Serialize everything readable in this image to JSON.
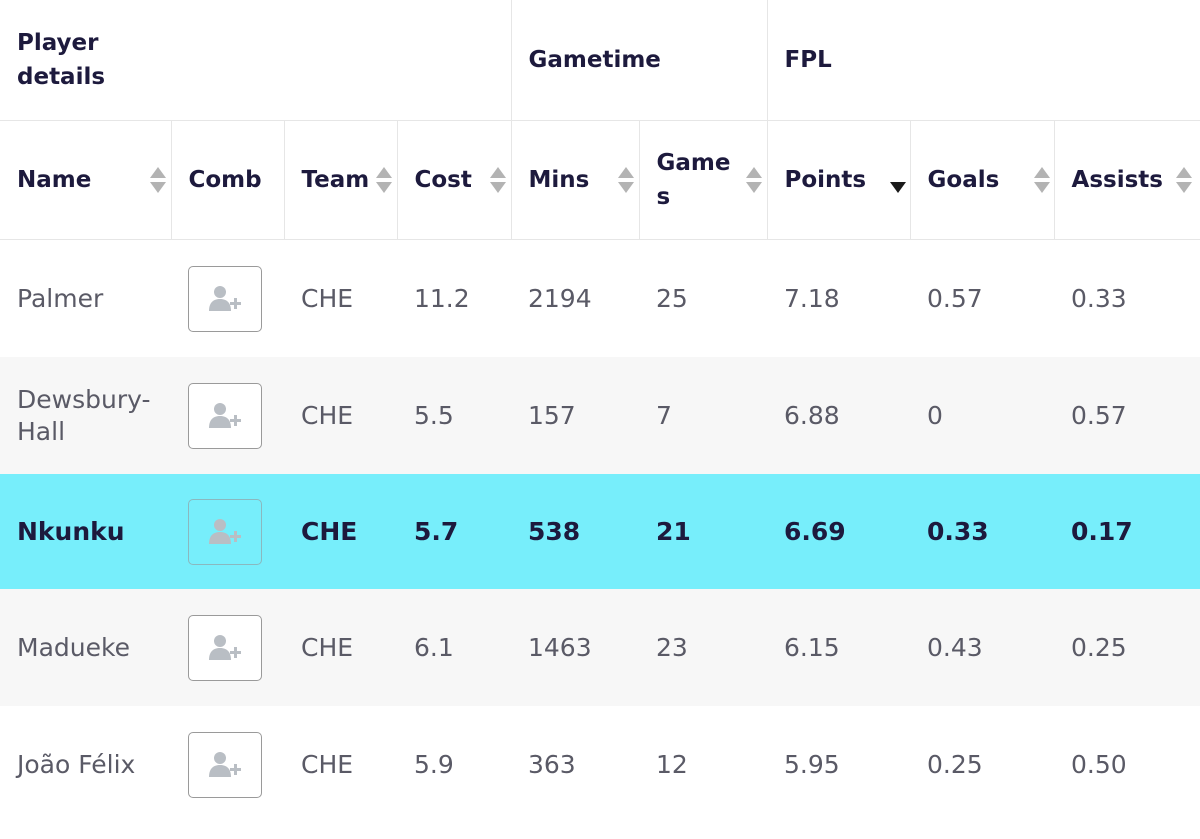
{
  "groups": {
    "player_details": "Player details",
    "gametime": "Gametime",
    "fpl": "FPL"
  },
  "columns": {
    "name": "Name",
    "comb": "Comb",
    "team": "Team",
    "cost": "Cost",
    "mins": "Mins",
    "games": "Games",
    "points": "Points",
    "goals": "Goals",
    "assists": "Assists"
  },
  "sort": {
    "column": "points",
    "direction": "descending"
  },
  "comb_icon": "add-user-icon",
  "colors": {
    "highlight": "#77eefb",
    "stripe": "#f7f7f7"
  },
  "rows": [
    {
      "name": "Palmer",
      "team": "CHE",
      "cost": "11.2",
      "mins": "2194",
      "games": "25",
      "points": "7.18",
      "goals": "0.57",
      "assists": "0.33"
    },
    {
      "name": "Dewsbury-Hall",
      "team": "CHE",
      "cost": "5.5",
      "mins": "157",
      "games": "7",
      "points": "6.88",
      "goals": "0",
      "assists": "0.57"
    },
    {
      "name": "Nkunku",
      "team": "CHE",
      "cost": "5.7",
      "mins": "538",
      "games": "21",
      "points": "6.69",
      "goals": "0.33",
      "assists": "0.17"
    },
    {
      "name": "Madueke",
      "team": "CHE",
      "cost": "6.1",
      "mins": "1463",
      "games": "23",
      "points": "6.15",
      "goals": "0.43",
      "assists": "0.25"
    },
    {
      "name": "João Félix",
      "team": "CHE",
      "cost": "5.9",
      "mins": "363",
      "games": "12",
      "points": "5.95",
      "goals": "0.25",
      "assists": "0.50"
    }
  ]
}
